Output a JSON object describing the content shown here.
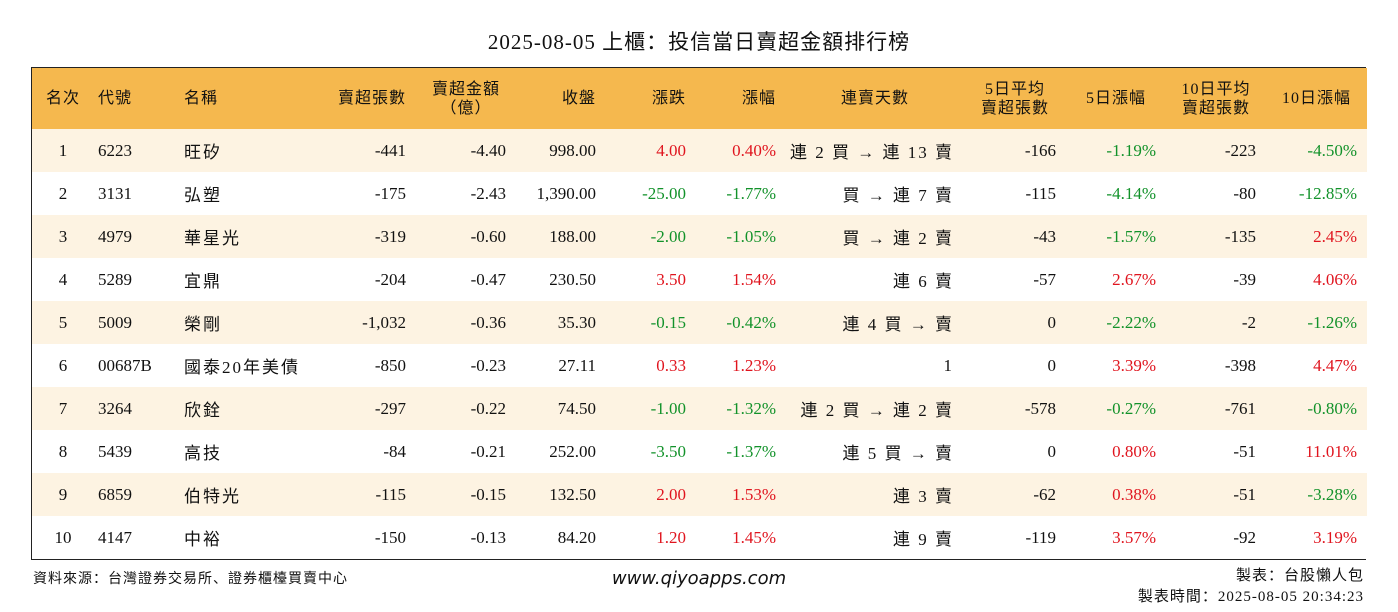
{
  "title": "2025-08-05 上櫃：投信當日賣超金額排行榜",
  "headers": {
    "rank": "名次",
    "code": "代號",
    "name": "名稱",
    "sell_shares": "賣超張數",
    "sell_amount_l1": "賣超金額",
    "sell_amount_l2": "（億）",
    "close": "收盤",
    "change": "漲跌",
    "change_pct": "漲幅",
    "streak": "連賣天數",
    "avg5_l1": "5日平均",
    "avg5_l2": "賣超張數",
    "chg5": "5日漲幅",
    "avg10_l1": "10日平均",
    "avg10_l2": "賣超張數",
    "chg10": "10日漲幅"
  },
  "colors": {
    "header_bg": "#f5b84e",
    "stripe_bg": "#fdf3e2",
    "up": "#e0141e",
    "down": "#12922a"
  },
  "rows": [
    {
      "rank": "1",
      "code": "6223",
      "name": "旺矽",
      "sell_shares": "-441",
      "sell_amount": "-4.40",
      "close": "998.00",
      "change": "4.00",
      "change_pct": "0.40%",
      "streak": "連 2 買 → 連 13 賣",
      "avg5": "-166",
      "chg5": "-1.19%",
      "avg10": "-223",
      "chg10": "-4.50%"
    },
    {
      "rank": "2",
      "code": "3131",
      "name": "弘塑",
      "sell_shares": "-175",
      "sell_amount": "-2.43",
      "close": "1,390.00",
      "change": "-25.00",
      "change_pct": "-1.77%",
      "streak": "買 → 連 7 賣",
      "avg5": "-115",
      "chg5": "-4.14%",
      "avg10": "-80",
      "chg10": "-12.85%"
    },
    {
      "rank": "3",
      "code": "4979",
      "name": "華星光",
      "sell_shares": "-319",
      "sell_amount": "-0.60",
      "close": "188.00",
      "change": "-2.00",
      "change_pct": "-1.05%",
      "streak": "買 → 連 2 賣",
      "avg5": "-43",
      "chg5": "-1.57%",
      "avg10": "-135",
      "chg10": "2.45%"
    },
    {
      "rank": "4",
      "code": "5289",
      "name": "宜鼎",
      "sell_shares": "-204",
      "sell_amount": "-0.47",
      "close": "230.50",
      "change": "3.50",
      "change_pct": "1.54%",
      "streak": "連 6 賣",
      "avg5": "-57",
      "chg5": "2.67%",
      "avg10": "-39",
      "chg10": "4.06%"
    },
    {
      "rank": "5",
      "code": "5009",
      "name": "榮剛",
      "sell_shares": "-1,032",
      "sell_amount": "-0.36",
      "close": "35.30",
      "change": "-0.15",
      "change_pct": "-0.42%",
      "streak": "連 4 買 → 賣",
      "avg5": "0",
      "chg5": "-2.22%",
      "avg10": "-2",
      "chg10": "-1.26%"
    },
    {
      "rank": "6",
      "code": "00687B",
      "name": "國泰20年美債",
      "sell_shares": "-850",
      "sell_amount": "-0.23",
      "close": "27.11",
      "change": "0.33",
      "change_pct": "1.23%",
      "streak": "1",
      "avg5": "0",
      "chg5": "3.39%",
      "avg10": "-398",
      "chg10": "4.47%"
    },
    {
      "rank": "7",
      "code": "3264",
      "name": "欣銓",
      "sell_shares": "-297",
      "sell_amount": "-0.22",
      "close": "74.50",
      "change": "-1.00",
      "change_pct": "-1.32%",
      "streak": "連 2 買 → 連 2 賣",
      "avg5": "-578",
      "chg5": "-0.27%",
      "avg10": "-761",
      "chg10": "-0.80%"
    },
    {
      "rank": "8",
      "code": "5439",
      "name": "高技",
      "sell_shares": "-84",
      "sell_amount": "-0.21",
      "close": "252.00",
      "change": "-3.50",
      "change_pct": "-1.37%",
      "streak": "連 5 買 → 賣",
      "avg5": "0",
      "chg5": "0.80%",
      "avg10": "-51",
      "chg10": "11.01%"
    },
    {
      "rank": "9",
      "code": "6859",
      "name": "伯特光",
      "sell_shares": "-115",
      "sell_amount": "-0.15",
      "close": "132.50",
      "change": "2.00",
      "change_pct": "1.53%",
      "streak": "連 3 賣",
      "avg5": "-62",
      "chg5": "0.38%",
      "avg10": "-51",
      "chg10": "-3.28%"
    },
    {
      "rank": "10",
      "code": "4147",
      "name": "中裕",
      "sell_shares": "-150",
      "sell_amount": "-0.13",
      "close": "84.20",
      "change": "1.20",
      "change_pct": "1.45%",
      "streak": "連 9 賣",
      "avg5": "-119",
      "chg5": "3.57%",
      "avg10": "-92",
      "chg10": "3.19%"
    }
  ],
  "footer": {
    "source": "資料來源：台灣證券交易所、證券櫃檯買賣中心",
    "url": "www.qiyoapps.com",
    "maker": "製表：台股懶人包",
    "made_time": "製表時間：2025-08-05 20:34:23"
  }
}
